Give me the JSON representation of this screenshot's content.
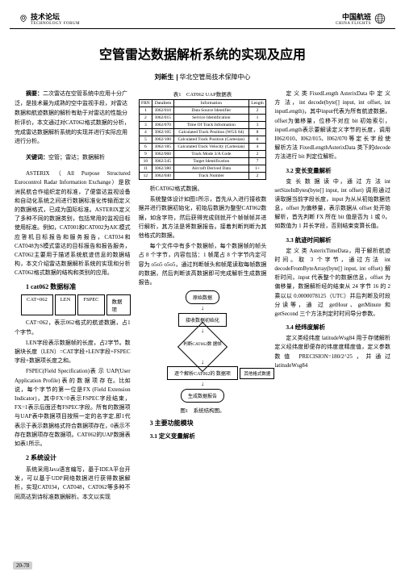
{
  "header": {
    "left_cn": "技术论坛",
    "left_en": "TECHNOLOGY FORUM",
    "right_cn": "中国航班",
    "right_en": "CHINA FLIGHTS"
  },
  "title": "空管雷达数据解析系统的实现及应用",
  "author": {
    "name": "刘新生",
    "affiliation": "华北空管局技术保障中心"
  },
  "abstract": {
    "label": "摘要：",
    "text": "二次雷达在空管系统中应用十分广泛，是技术最为成熟的空中监视手段，对雷达数据和航迹数据的解析有助于对雷达的性能分析评价，本文通过对CAT062格式数据的分析，完成雷达数据解析系统的实现并进行实际应用进行分析。"
  },
  "keywords": {
    "label": "关键词：",
    "text": "空管；雷达；数据解析"
  },
  "p1": "ASTERIX（All Purpose Structured Eurocontrol Radar Information Exchange）是欧洲民航合作组织定的标准，了便雷达监视设备和自动化系统之间进行数据标准化传输而定义的数据格式，已成为国际标准。ASTERIX定义了多种不同的数据类别，包括常用的监视目标使用标准。例如，CAT001和CAT002为AIC模式应答机目标报告和服务报告，CAT034和CAT048为S模式雷达的目标报告和报告服务，CAT062主要用于描述系统航迹信息的数据结构，本文介绍雷达数据解析系统的实现和分析CAT062格式数据的结构和类别的应用。",
  "sec1": "1 cat062 数据标准",
  "boxes": {
    "b1": "CAT=062",
    "b2": "LEN",
    "b3": "FSPEC",
    "b4": "数据项"
  },
  "p2": "CAT=062，表示062格式的航迹数据，占1个字节。",
  "p3": "LEN字段表示数据帧的长度，占2字节。数据块长度（LEN）=CAT字段+LEN字段+FSPEC字段+数据项长度之和。",
  "p4": "FSPEC(Field Specification)表  示 UAP(User Application Profile) 表 的 数 据 项 存 在。比如说，每个字节的第一位是FX (Field Extension Indicator)，其中FX=0表示FSPEC字段结束，FX=1表示后面还有FSPEC字段。所有的数据项与UAP表中数据项目按照一定的名字定,即1代表示于表示数据格式符合数据项存在，0表示不存在数据项存在数据项。CAT062的UAP数据表如表1所示。",
  "sec2": "2 系统设计",
  "p5": "系统采用Java语言编写，基于IDEA平台开发，可以基于UDP网络数据进行获得数据解析，实现CAT034，CAT048，CAT062等多种不同高达到诗标准数据解析。本文以实现",
  "tbl_cap": "表1　CAT062 UAP数据表",
  "tbl": {
    "headers": [
      "FRN",
      "DataItem",
      "Information",
      "Length"
    ],
    "rows": [
      [
        "1",
        "I062/010",
        "Data Source Identifier",
        "2"
      ],
      [
        "2",
        "I062/015",
        "Service Identification",
        "1"
      ],
      [
        "3",
        "I062/070",
        "Time Of Track Information",
        "3"
      ],
      [
        "4",
        "I062/105",
        "Calculated Track Position (WGS 84)",
        "8"
      ],
      [
        "5",
        "I062/100",
        "Calculated Track Position (Cartesian)",
        "6"
      ],
      [
        "6",
        "I062/185",
        "Calculated Track Velocity (Cartesian)",
        "4"
      ],
      [
        "9",
        "I062/060",
        "Track Mode 3/A Code",
        "2"
      ],
      [
        "10",
        "I062/245",
        "Target Identification",
        "7"
      ],
      [
        "11",
        "I062/380",
        "Aircraft Derived Data",
        "1+"
      ],
      [
        "12",
        "I062/040",
        "Track Number",
        "2"
      ]
    ]
  },
  "p6": "析CAT062格式数据。",
  "p7": "系统整体设计如图1所示，首先从入进行接收数据并进行数据初始化，初始后数据为整型CAT062数据，如含字符，然后获得完成则就开个帧帧帧并进行解析，其方法是将数据报告。接着判断判断为其他格式的数据。",
  "p8": "每个文件中有多个数据帧，每个数据帧的帧头占 8 个字节，内容包括：1 帧尾占 8 个字节内定可容为 o5o5 o5o5，通过判断帧头和帧尾读取每帧数据的数据，然后判断该高数据即可完成解析生成数据报告。",
  "flow": {
    "f1": "原始数据",
    "f2": "接收数据初始化",
    "f3": "判断CAT062数\n据帧",
    "f4": "逐个解析CAT062的\n数据项",
    "f5": "生成数据报告",
    "side": "其他格式数据",
    "cap": "图1　系统结构图。"
  },
  "sec3": "3 主要功能模块",
  "sub31": "3.1 定义变量解析",
  "p9": "定 义 类 FixedLength AsterixData 中 定 义 方 法，int decode(byte[] input, int offset, int inputLength)，其中input代表为所有航迹数据，offset为偏移量，位移不对应 bit 初始索引，inputLength表示要解读定义字节的长度，调用I062/010、I062/015、I062/070 等 定 长 字 段 使解析方法 FixedLengthAsterixData  类下的decode方法进行 bit 判定位解析。",
  "sub32": "3.2 变长变量解析",
  "p10": "变 长 数 据 读 中，通 过 方 法 int setSizeInBytes(byte[] input, int offset) 调用通过读取据当前字段长度，input 为从从初始数据信息，offset 为偏移量，表示数据从 offset 处开始解析，首先判断 FX 所在 bit 值是否为 1 或 0，如数值为 1 并长字段，否则结束变算长值。",
  "sub33": "3.3 航迹时间解析",
  "p11": "定 义 类 AsterixTimeData，用于解析航迹时间。取 3 个字节，通过方法 int decodeFromByteArray(byte[] input, int offset) 解析时间，input 代表整个的数据信息，offset 为偏移量，数据解析经的结束从 24 字节 16 的 2 乘以以 0.0000078125（UTC）并后判断及时段分读等，通 过 getHour、getMinute 和 getSecond 三个方法判定时时间导分参数。",
  "sub34": "3.4 经纬度解析",
  "p12": "定义类经纬度 latitudeWsg84 用于存储解析定义经纬度即便存的纬度度精度值，定义参数数值 PRECISION=180/2^25，并通过 latitudeWsg84",
  "pagenum": "20-78"
}
